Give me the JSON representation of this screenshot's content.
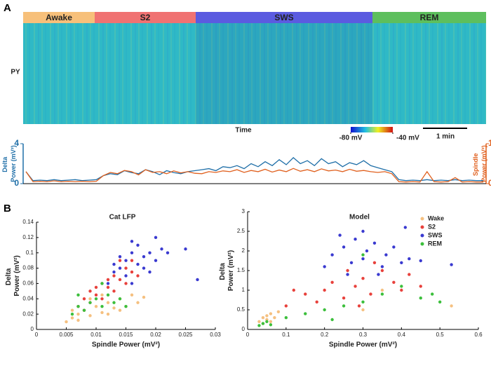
{
  "panel_labels": [
    "A",
    "B"
  ],
  "chart_data": [
    {
      "type": "raster",
      "y_label": "PY",
      "x_label": "Time",
      "scale_bar": "1 min",
      "stages": [
        {
          "name": "Awake",
          "color": "#f7c07a"
        },
        {
          "name": "S2",
          "color": "#f07272"
        },
        {
          "name": "SWS",
          "color": "#5b5be0"
        },
        {
          "name": "REM",
          "color": "#5dbf5d"
        }
      ],
      "clim": [
        -80,
        -40
      ],
      "colorbar_ticks": [
        {
          "value": -80,
          "label": "-80 mV"
        },
        {
          "value": -40,
          "label": "-40 mV"
        }
      ]
    },
    {
      "type": "line",
      "y_label": "Delta Power (mV²)",
      "y2_label": "Spindle Power (mV²)",
      "ylim": [
        0,
        4
      ],
      "yticks": [
        0,
        4
      ],
      "y2lim": [
        0,
        1
      ],
      "y2ticks": [
        0,
        1
      ],
      "series": [
        {
          "color": "#1f6fa8",
          "values": [
            1.2,
            0.3,
            0.35,
            0.3,
            0.4,
            0.3,
            0.35,
            0.4,
            0.3,
            0.35,
            0.4,
            0.8,
            1.0,
            0.9,
            1.3,
            1.1,
            1.0,
            1.4,
            1.2,
            0.9,
            1.3,
            1.1,
            1.0,
            1.2,
            1.3,
            1.4,
            1.5,
            1.3,
            1.7,
            1.6,
            1.8,
            1.5,
            2.0,
            1.7,
            2.2,
            1.8,
            2.4,
            1.9,
            2.6,
            2.0,
            2.3,
            1.8,
            2.5,
            2.0,
            2.2,
            1.7,
            2.1,
            1.9,
            2.3,
            1.8,
            1.6,
            1.4,
            1.2,
            0.4,
            0.3,
            0.35,
            0.3,
            0.4,
            0.3,
            0.35,
            0.3,
            0.4,
            0.3,
            0.35,
            0.3,
            0.3
          ]
        },
        {
          "color": "#e0601e",
          "axis": "y2",
          "values": [
            0.3,
            0.05,
            0.06,
            0.05,
            0.07,
            0.05,
            0.06,
            0.05,
            0.06,
            0.05,
            0.06,
            0.2,
            0.28,
            0.25,
            0.33,
            0.3,
            0.22,
            0.35,
            0.28,
            0.3,
            0.25,
            0.32,
            0.27,
            0.3,
            0.26,
            0.25,
            0.3,
            0.28,
            0.32,
            0.3,
            0.35,
            0.28,
            0.33,
            0.3,
            0.36,
            0.29,
            0.34,
            0.3,
            0.38,
            0.31,
            0.35,
            0.3,
            0.37,
            0.32,
            0.34,
            0.3,
            0.36,
            0.31,
            0.33,
            0.3,
            0.28,
            0.3,
            0.25,
            0.05,
            0.04,
            0.05,
            0.04,
            0.3,
            0.05,
            0.04,
            0.05,
            0.15,
            0.04,
            0.05,
            0.04,
            0.04
          ]
        }
      ]
    },
    {
      "type": "scatter",
      "title": "Cat LFP",
      "x_label": "Spindle Power (mV²)",
      "y_label": "Delta Power (mV²)",
      "xlim": [
        0,
        0.03
      ],
      "xticks": [
        0,
        0.005,
        0.01,
        0.015,
        0.02,
        0.025,
        0.03
      ],
      "ylim": [
        0,
        0.14
      ],
      "yticks": [
        0,
        0.02,
        0.04,
        0.06,
        0.08,
        0.1,
        0.12,
        0.14
      ],
      "series": [
        {
          "color": "#f5c080",
          "x": [
            0.006,
            0.007,
            0.008,
            0.009,
            0.01,
            0.011,
            0.012,
            0.013,
            0.014,
            0.015,
            0.016,
            0.017,
            0.005,
            0.007,
            0.009,
            0.018,
            0.012,
            0.014,
            0.006,
            0.011
          ],
          "values": [
            0.015,
            0.02,
            0.025,
            0.018,
            0.03,
            0.022,
            0.035,
            0.028,
            0.04,
            0.03,
            0.045,
            0.035,
            0.01,
            0.012,
            0.04,
            0.042,
            0.02,
            0.025,
            0.025,
            0.045
          ]
        },
        {
          "color": "#e8413c",
          "x": [
            0.007,
            0.008,
            0.009,
            0.01,
            0.011,
            0.012,
            0.013,
            0.014,
            0.015,
            0.016,
            0.009,
            0.011,
            0.013,
            0.012,
            0.014,
            0.01,
            0.008,
            0.015,
            0.016,
            0.017
          ],
          "values": [
            0.03,
            0.04,
            0.05,
            0.045,
            0.06,
            0.055,
            0.07,
            0.065,
            0.08,
            0.075,
            0.035,
            0.04,
            0.05,
            0.065,
            0.09,
            0.055,
            0.025,
            0.06,
            0.09,
            0.07
          ]
        },
        {
          "color": "#3a3ad0",
          "x": [
            0.012,
            0.013,
            0.014,
            0.015,
            0.016,
            0.017,
            0.018,
            0.019,
            0.02,
            0.021,
            0.015,
            0.017,
            0.014,
            0.016,
            0.018,
            0.019,
            0.022,
            0.013,
            0.025,
            0.027,
            0.02,
            0.016
          ],
          "values": [
            0.06,
            0.075,
            0.08,
            0.09,
            0.1,
            0.085,
            0.095,
            0.1,
            0.09,
            0.105,
            0.07,
            0.11,
            0.095,
            0.115,
            0.08,
            0.075,
            0.1,
            0.085,
            0.105,
            0.065,
            0.12,
            0.06
          ]
        },
        {
          "color": "#3cbf3c",
          "x": [
            0.006,
            0.007,
            0.008,
            0.009,
            0.01,
            0.011,
            0.012,
            0.013,
            0.014,
            0.007,
            0.015,
            0.011
          ],
          "values": [
            0.02,
            0.03,
            0.025,
            0.035,
            0.04,
            0.03,
            0.045,
            0.035,
            0.04,
            0.045,
            0.03,
            0.06
          ]
        }
      ]
    },
    {
      "type": "scatter",
      "title": "Model",
      "x_label": "Spindle Power (mV²)",
      "y_label": "Delta Power (mV²)",
      "xlim": [
        0,
        0.6
      ],
      "xticks": [
        0,
        0.1,
        0.2,
        0.3,
        0.4,
        0.5,
        0.6
      ],
      "ylim": [
        0,
        3
      ],
      "yticks": [
        0,
        0.5,
        1,
        1.5,
        2,
        2.5,
        3
      ],
      "legend": "upper right",
      "series": [
        {
          "name": "Wake",
          "color": "#f5c080",
          "x": [
            0.03,
            0.04,
            0.05,
            0.06,
            0.07,
            0.05,
            0.04,
            0.08,
            0.06,
            0.53,
            0.35,
            0.3
          ],
          "values": [
            0.2,
            0.3,
            0.35,
            0.4,
            0.3,
            0.25,
            0.15,
            0.45,
            0.2,
            0.6,
            1.0,
            0.5
          ]
        },
        {
          "name": "S2",
          "color": "#e8413c",
          "x": [
            0.1,
            0.15,
            0.2,
            0.22,
            0.25,
            0.28,
            0.3,
            0.32,
            0.35,
            0.38,
            0.4,
            0.42,
            0.18,
            0.26,
            0.33,
            0.45,
            0.12,
            0.29
          ],
          "values": [
            0.6,
            0.9,
            1.0,
            1.2,
            0.8,
            1.1,
            1.3,
            0.9,
            1.5,
            1.2,
            1.0,
            1.4,
            0.7,
            1.5,
            1.7,
            1.1,
            1.0,
            0.6
          ]
        },
        {
          "name": "SWS",
          "color": "#3a3ad0",
          "x": [
            0.2,
            0.22,
            0.25,
            0.27,
            0.28,
            0.3,
            0.31,
            0.33,
            0.35,
            0.36,
            0.38,
            0.4,
            0.42,
            0.24,
            0.3,
            0.45,
            0.53,
            0.26,
            0.34,
            0.41
          ],
          "values": [
            1.6,
            1.9,
            2.1,
            1.7,
            2.3,
            1.8,
            2.0,
            2.2,
            1.6,
            1.9,
            2.1,
            1.7,
            1.8,
            2.4,
            2.5,
            1.75,
            1.65,
            1.4,
            1.4,
            2.6
          ]
        },
        {
          "name": "REM",
          "color": "#3cbf3c",
          "x": [
            0.03,
            0.04,
            0.05,
            0.06,
            0.1,
            0.15,
            0.2,
            0.25,
            0.3,
            0.35,
            0.4,
            0.45,
            0.5,
            0.48,
            0.3,
            0.22
          ],
          "values": [
            0.1,
            0.15,
            0.2,
            0.12,
            0.3,
            0.4,
            0.5,
            0.6,
            0.7,
            0.9,
            1.1,
            0.8,
            0.7,
            0.9,
            1.9,
            0.25
          ]
        }
      ]
    }
  ]
}
